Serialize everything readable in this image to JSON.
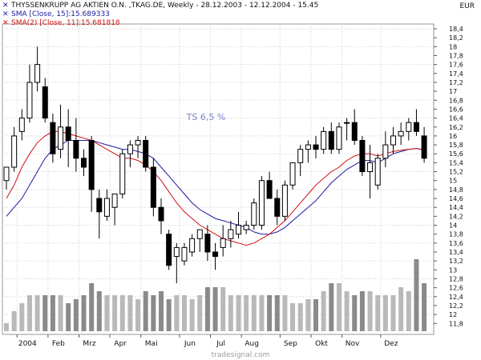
{
  "header": {
    "title": "THYSSENKRUPP AG AKTIEN O.N. ,TKAG.DE, Weekly - 28.12.2003 - 12.12.2004 - 15.45",
    "currency": "EUR",
    "indicators": [
      {
        "label": "SMA [Close, 15]:15.689333",
        "color": "#1a1aa0"
      },
      {
        "label": "SMA(2) [Close, 11]:15.681818",
        "color": "#d01010"
      }
    ]
  },
  "annotation": "TS 6,5 %",
  "watermark": "tradesignal.com",
  "chart_data": {
    "type": "candlestick",
    "period": "Weekly",
    "date_range": [
      "28.12.2003",
      "12.12.2004"
    ],
    "ylim": [
      11.6,
      18.5
    ],
    "yticks": [
      "18,4",
      "18,2",
      "18",
      "17,8",
      "17,6",
      "17,4",
      "17,2",
      "17",
      "16,8",
      "16,6",
      "16,4",
      "16,2",
      "16",
      "15,8",
      "15,6",
      "15,4",
      "15,2",
      "15",
      "14,8",
      "14,6",
      "14,4",
      "14,2",
      "14",
      "13,8",
      "13,6",
      "13,4",
      "13,2",
      "13",
      "12,8",
      "12,6",
      "12,4",
      "12,2",
      "12",
      "11,8"
    ],
    "ytick_values": [
      18.4,
      18.2,
      18.0,
      17.8,
      17.6,
      17.4,
      17.2,
      17.0,
      16.8,
      16.6,
      16.4,
      16.2,
      16.0,
      15.8,
      15.6,
      15.4,
      15.2,
      15.0,
      14.8,
      14.6,
      14.4,
      14.2,
      14.0,
      13.8,
      13.6,
      13.4,
      13.2,
      13.0,
      12.8,
      12.6,
      12.4,
      12.2,
      12.0,
      11.8
    ],
    "xticks": [
      {
        "label": "2004",
        "week": 2
      },
      {
        "label": "Feb",
        "week": 6
      },
      {
        "label": "Mrz",
        "week": 10
      },
      {
        "label": "Apr",
        "week": 14
      },
      {
        "label": "Mai",
        "week": 18
      },
      {
        "label": "Jun",
        "week": 23
      },
      {
        "label": "Jul",
        "week": 27
      },
      {
        "label": "Aug",
        "week": 31
      },
      {
        "label": "Sep",
        "week": 36
      },
      {
        "label": "Okt",
        "week": 40
      },
      {
        "label": "Nov",
        "week": 44
      },
      {
        "label": "Dez",
        "week": 49
      }
    ],
    "candles": [
      {
        "o": 15.0,
        "h": 15.3,
        "l": 14.8,
        "c": 15.3
      },
      {
        "o": 15.3,
        "h": 16.2,
        "l": 15.2,
        "c": 16.0
      },
      {
        "o": 16.1,
        "h": 16.6,
        "l": 15.9,
        "c": 16.4
      },
      {
        "o": 16.4,
        "h": 17.6,
        "l": 16.3,
        "c": 17.2
      },
      {
        "o": 17.2,
        "h": 18.0,
        "l": 17.0,
        "c": 17.6
      },
      {
        "o": 17.1,
        "h": 17.3,
        "l": 16.3,
        "c": 16.4
      },
      {
        "o": 16.3,
        "h": 16.5,
        "l": 15.4,
        "c": 15.6
      },
      {
        "o": 15.7,
        "h": 16.7,
        "l": 15.5,
        "c": 16.2
      },
      {
        "o": 16.2,
        "h": 16.6,
        "l": 15.3,
        "c": 15.9
      },
      {
        "o": 15.9,
        "h": 16.4,
        "l": 15.2,
        "c": 15.5
      },
      {
        "o": 15.5,
        "h": 15.7,
        "l": 15.1,
        "c": 15.3
      },
      {
        "o": 15.9,
        "h": 16.0,
        "l": 14.3,
        "c": 14.8
      },
      {
        "o": 14.6,
        "h": 14.8,
        "l": 13.7,
        "c": 14.3
      },
      {
        "o": 14.2,
        "h": 14.8,
        "l": 14.1,
        "c": 14.6
      },
      {
        "o": 14.4,
        "h": 14.7,
        "l": 14.0,
        "c": 14.7
      },
      {
        "o": 14.7,
        "h": 15.7,
        "l": 14.6,
        "c": 15.6
      },
      {
        "o": 15.6,
        "h": 15.9,
        "l": 15.3,
        "c": 15.8
      },
      {
        "o": 15.8,
        "h": 16.0,
        "l": 15.5,
        "c": 15.9
      },
      {
        "o": 15.9,
        "h": 16.0,
        "l": 15.2,
        "c": 15.3
      },
      {
        "o": 15.3,
        "h": 15.5,
        "l": 14.2,
        "c": 14.4
      },
      {
        "o": 14.4,
        "h": 14.6,
        "l": 13.8,
        "c": 14.1
      },
      {
        "o": 13.8,
        "h": 13.9,
        "l": 13.0,
        "c": 13.1
      },
      {
        "o": 13.3,
        "h": 13.6,
        "l": 12.7,
        "c": 13.5
      },
      {
        "o": 13.2,
        "h": 13.6,
        "l": 13.1,
        "c": 13.5
      },
      {
        "o": 13.4,
        "h": 13.8,
        "l": 13.3,
        "c": 13.7
      },
      {
        "o": 13.7,
        "h": 13.9,
        "l": 13.4,
        "c": 13.9
      },
      {
        "o": 13.8,
        "h": 14.0,
        "l": 13.2,
        "c": 13.4
      },
      {
        "o": 13.4,
        "h": 13.6,
        "l": 13.0,
        "c": 13.3
      },
      {
        "o": 13.5,
        "h": 14.0,
        "l": 13.3,
        "c": 13.7
      },
      {
        "o": 13.7,
        "h": 14.1,
        "l": 13.5,
        "c": 13.9
      },
      {
        "o": 13.8,
        "h": 14.3,
        "l": 13.7,
        "c": 14.0
      },
      {
        "o": 13.9,
        "h": 14.1,
        "l": 13.8,
        "c": 14.0
      },
      {
        "o": 14.0,
        "h": 14.6,
        "l": 13.9,
        "c": 14.5
      },
      {
        "o": 14.0,
        "h": 15.1,
        "l": 13.9,
        "c": 15.0
      },
      {
        "o": 15.0,
        "h": 15.2,
        "l": 14.6,
        "c": 14.6
      },
      {
        "o": 14.6,
        "h": 14.8,
        "l": 14.0,
        "c": 14.2
      },
      {
        "o": 14.2,
        "h": 15.0,
        "l": 14.1,
        "c": 14.9
      },
      {
        "o": 14.9,
        "h": 15.4,
        "l": 14.8,
        "c": 15.4
      },
      {
        "o": 15.4,
        "h": 15.8,
        "l": 15.1,
        "c": 15.7
      },
      {
        "o": 15.7,
        "h": 15.9,
        "l": 15.4,
        "c": 15.8
      },
      {
        "o": 15.8,
        "h": 16.0,
        "l": 15.5,
        "c": 15.7
      },
      {
        "o": 15.7,
        "h": 16.2,
        "l": 15.6,
        "c": 16.1
      },
      {
        "o": 16.1,
        "h": 16.3,
        "l": 15.6,
        "c": 15.7
      },
      {
        "o": 15.7,
        "h": 16.3,
        "l": 15.6,
        "c": 16.2
      },
      {
        "o": 16.3,
        "h": 16.4,
        "l": 15.9,
        "c": 16.3
      },
      {
        "o": 16.3,
        "h": 16.6,
        "l": 15.8,
        "c": 15.9
      },
      {
        "o": 15.9,
        "h": 16.0,
        "l": 15.1,
        "c": 15.2
      },
      {
        "o": 15.2,
        "h": 15.8,
        "l": 14.6,
        "c": 15.4
      },
      {
        "o": 14.9,
        "h": 15.6,
        "l": 14.8,
        "c": 15.5
      },
      {
        "o": 15.5,
        "h": 16.1,
        "l": 15.3,
        "c": 15.8
      },
      {
        "o": 15.8,
        "h": 16.2,
        "l": 15.6,
        "c": 16.0
      },
      {
        "o": 16.0,
        "h": 16.3,
        "l": 15.8,
        "c": 16.1
      },
      {
        "o": 16.1,
        "h": 16.4,
        "l": 15.9,
        "c": 16.3
      },
      {
        "o": 16.3,
        "h": 16.6,
        "l": 16.0,
        "c": 16.1
      },
      {
        "o": 16.0,
        "h": 16.2,
        "l": 15.4,
        "c": 15.5
      }
    ],
    "series": [
      {
        "name": "SMA [Close, 15]",
        "color": "#1a1aa0",
        "values": [
          14.2,
          14.4,
          14.6,
          14.9,
          15.2,
          15.5,
          15.7,
          15.8,
          15.9,
          15.9,
          15.9,
          15.9,
          15.85,
          15.8,
          15.75,
          15.7,
          15.7,
          15.65,
          15.6,
          15.5,
          15.3,
          15.1,
          14.9,
          14.7,
          14.5,
          14.35,
          14.25,
          14.15,
          14.1,
          14.05,
          14.0,
          13.95,
          13.85,
          13.8,
          13.8,
          13.85,
          13.95,
          14.1,
          14.25,
          14.4,
          14.55,
          14.75,
          14.95,
          15.1,
          15.25,
          15.35,
          15.45,
          15.45,
          15.4,
          15.5,
          15.6,
          15.65,
          15.7,
          15.72,
          15.69
        ]
      },
      {
        "name": "SMA(2) [Close, 11]",
        "color": "#d01010",
        "values": [
          14.6,
          14.9,
          15.3,
          15.6,
          15.85,
          16.0,
          16.1,
          16.1,
          16.05,
          16.0,
          15.95,
          15.9,
          15.8,
          15.7,
          15.6,
          15.5,
          15.5,
          15.45,
          15.35,
          15.2,
          15.0,
          14.75,
          14.5,
          14.3,
          14.15,
          14.0,
          13.9,
          13.8,
          13.7,
          13.65,
          13.6,
          13.55,
          13.6,
          13.7,
          13.8,
          13.95,
          14.1,
          14.3,
          14.5,
          14.7,
          14.9,
          15.05,
          15.2,
          15.3,
          15.45,
          15.55,
          15.6,
          15.6,
          15.55,
          15.6,
          15.65,
          15.68,
          15.7,
          15.72,
          15.68
        ]
      }
    ],
    "volume": [
      0.1,
      0.25,
      0.35,
      0.45,
      0.45,
      0.45,
      0.45,
      0.45,
      0.35,
      0.4,
      0.45,
      0.6,
      0.5,
      0.45,
      0.45,
      0.45,
      0.45,
      0.4,
      0.5,
      0.45,
      0.5,
      0.4,
      0.45,
      0.45,
      0.4,
      0.45,
      0.55,
      0.55,
      0.55,
      0.45,
      0.45,
      0.45,
      0.45,
      0.45,
      0.45,
      0.45,
      0.45,
      0.35,
      0.35,
      0.4,
      0.4,
      0.5,
      0.6,
      0.6,
      0.5,
      0.45,
      0.5,
      0.5,
      0.45,
      0.45,
      0.45,
      0.55,
      0.5,
      0.9,
      0.6
    ]
  }
}
